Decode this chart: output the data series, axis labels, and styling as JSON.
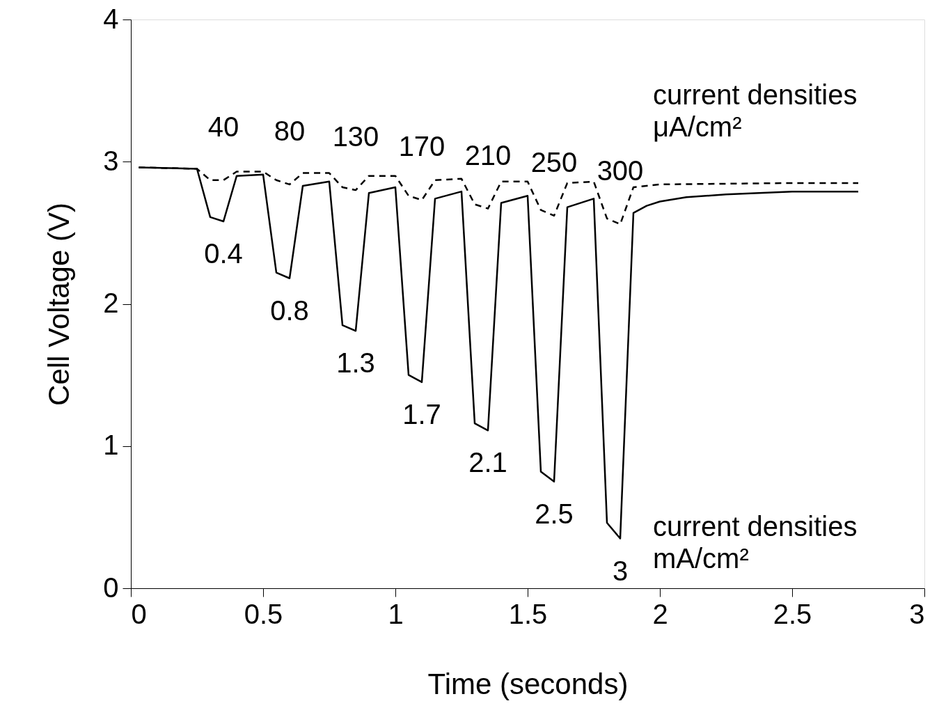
{
  "chart_data": {
    "type": "line",
    "xlabel": "Time (seconds)",
    "ylabel": "Cell Voltage (V)",
    "xlim": [
      0,
      3
    ],
    "xticks": [
      0,
      0.5,
      1,
      1.5,
      2,
      2.5,
      3
    ],
    "ylim": [
      0,
      4
    ],
    "yticks": [
      0,
      1,
      2,
      3,
      4
    ],
    "grid": false,
    "legend": false,
    "series": [
      {
        "color": "#000000",
        "line_style": "solid",
        "x": [
          0.03,
          0.25,
          0.3,
          0.35,
          0.4,
          0.5,
          0.55,
          0.6,
          0.65,
          0.75,
          0.8,
          0.85,
          0.9,
          1.0,
          1.05,
          1.1,
          1.15,
          1.25,
          1.3,
          1.35,
          1.4,
          1.5,
          1.55,
          1.6,
          1.65,
          1.75,
          1.8,
          1.85,
          1.9,
          1.95,
          2.0,
          2.1,
          2.25,
          2.5,
          2.75
        ],
        "values": [
          2.96,
          2.95,
          2.61,
          2.58,
          2.9,
          2.91,
          2.22,
          2.18,
          2.83,
          2.86,
          1.85,
          1.81,
          2.78,
          2.82,
          1.5,
          1.45,
          2.74,
          2.79,
          1.16,
          1.11,
          2.71,
          2.76,
          0.82,
          0.75,
          2.68,
          2.74,
          0.46,
          0.35,
          2.64,
          2.69,
          2.72,
          2.75,
          2.77,
          2.79,
          2.79
        ]
      },
      {
        "color": "#000000",
        "line_style": "dashed",
        "x": [
          0.03,
          0.25,
          0.3,
          0.35,
          0.4,
          0.5,
          0.55,
          0.6,
          0.65,
          0.75,
          0.8,
          0.85,
          0.9,
          1.0,
          1.05,
          1.1,
          1.15,
          1.25,
          1.3,
          1.35,
          1.4,
          1.5,
          1.55,
          1.6,
          1.65,
          1.75,
          1.8,
          1.85,
          1.9,
          2.0,
          2.5,
          2.75
        ],
        "values": [
          2.96,
          2.95,
          2.87,
          2.87,
          2.93,
          2.93,
          2.87,
          2.84,
          2.92,
          2.92,
          2.82,
          2.8,
          2.9,
          2.9,
          2.76,
          2.73,
          2.87,
          2.88,
          2.7,
          2.67,
          2.86,
          2.86,
          2.66,
          2.62,
          2.85,
          2.86,
          2.6,
          2.56,
          2.82,
          2.84,
          2.85,
          2.85
        ]
      }
    ],
    "annotations": [
      {
        "text": "0.4",
        "x": 0.35,
        "y": 2.58
      },
      {
        "text": "0.8",
        "x": 0.6,
        "y": 2.18
      },
      {
        "text": "1.3",
        "x": 0.85,
        "y": 1.81
      },
      {
        "text": "1.7",
        "x": 1.1,
        "y": 1.45
      },
      {
        "text": "2.1",
        "x": 1.35,
        "y": 1.11
      },
      {
        "text": "2.5",
        "x": 1.6,
        "y": 0.75
      },
      {
        "text": "3",
        "x": 1.85,
        "y": 0.35
      },
      {
        "text": "40",
        "x": 0.35,
        "y": 2.87
      },
      {
        "text": "80",
        "x": 0.6,
        "y": 2.84
      },
      {
        "text": "130",
        "x": 0.85,
        "y": 2.8
      },
      {
        "text": "170",
        "x": 1.1,
        "y": 2.73
      },
      {
        "text": "210",
        "x": 1.35,
        "y": 2.67
      },
      {
        "text": "250",
        "x": 1.6,
        "y": 2.62
      },
      {
        "text": "300",
        "x": 1.85,
        "y": 2.56
      },
      "current densities μA/cm²",
      "current densities mA/cm²"
    ]
  }
}
